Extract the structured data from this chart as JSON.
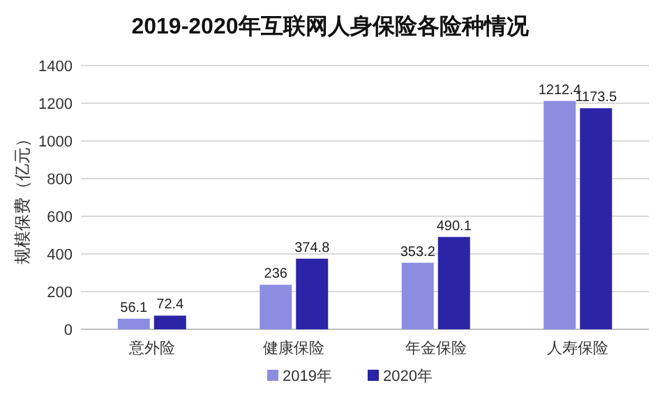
{
  "chart_data": {
    "type": "bar",
    "title": "2019-2020年互联网人身保险各险种情况",
    "ylabel": "规模保费（亿元）",
    "categories": [
      "意外险",
      "健康保险",
      "年金保险",
      "人寿保险"
    ],
    "series": [
      {
        "name": "2019年",
        "color": "#8b8ee0",
        "values": [
          56.1,
          236,
          353.2,
          1212.4
        ]
      },
      {
        "name": "2020年",
        "color": "#2b24a6",
        "values": [
          72.4,
          374.8,
          490.1,
          1173.5
        ]
      }
    ],
    "ylim": [
      0,
      1400
    ],
    "yticks": [
      0,
      200,
      400,
      600,
      800,
      1000,
      1200,
      1400
    ],
    "grid": "y",
    "legend": "bottom",
    "data_labels": true
  }
}
